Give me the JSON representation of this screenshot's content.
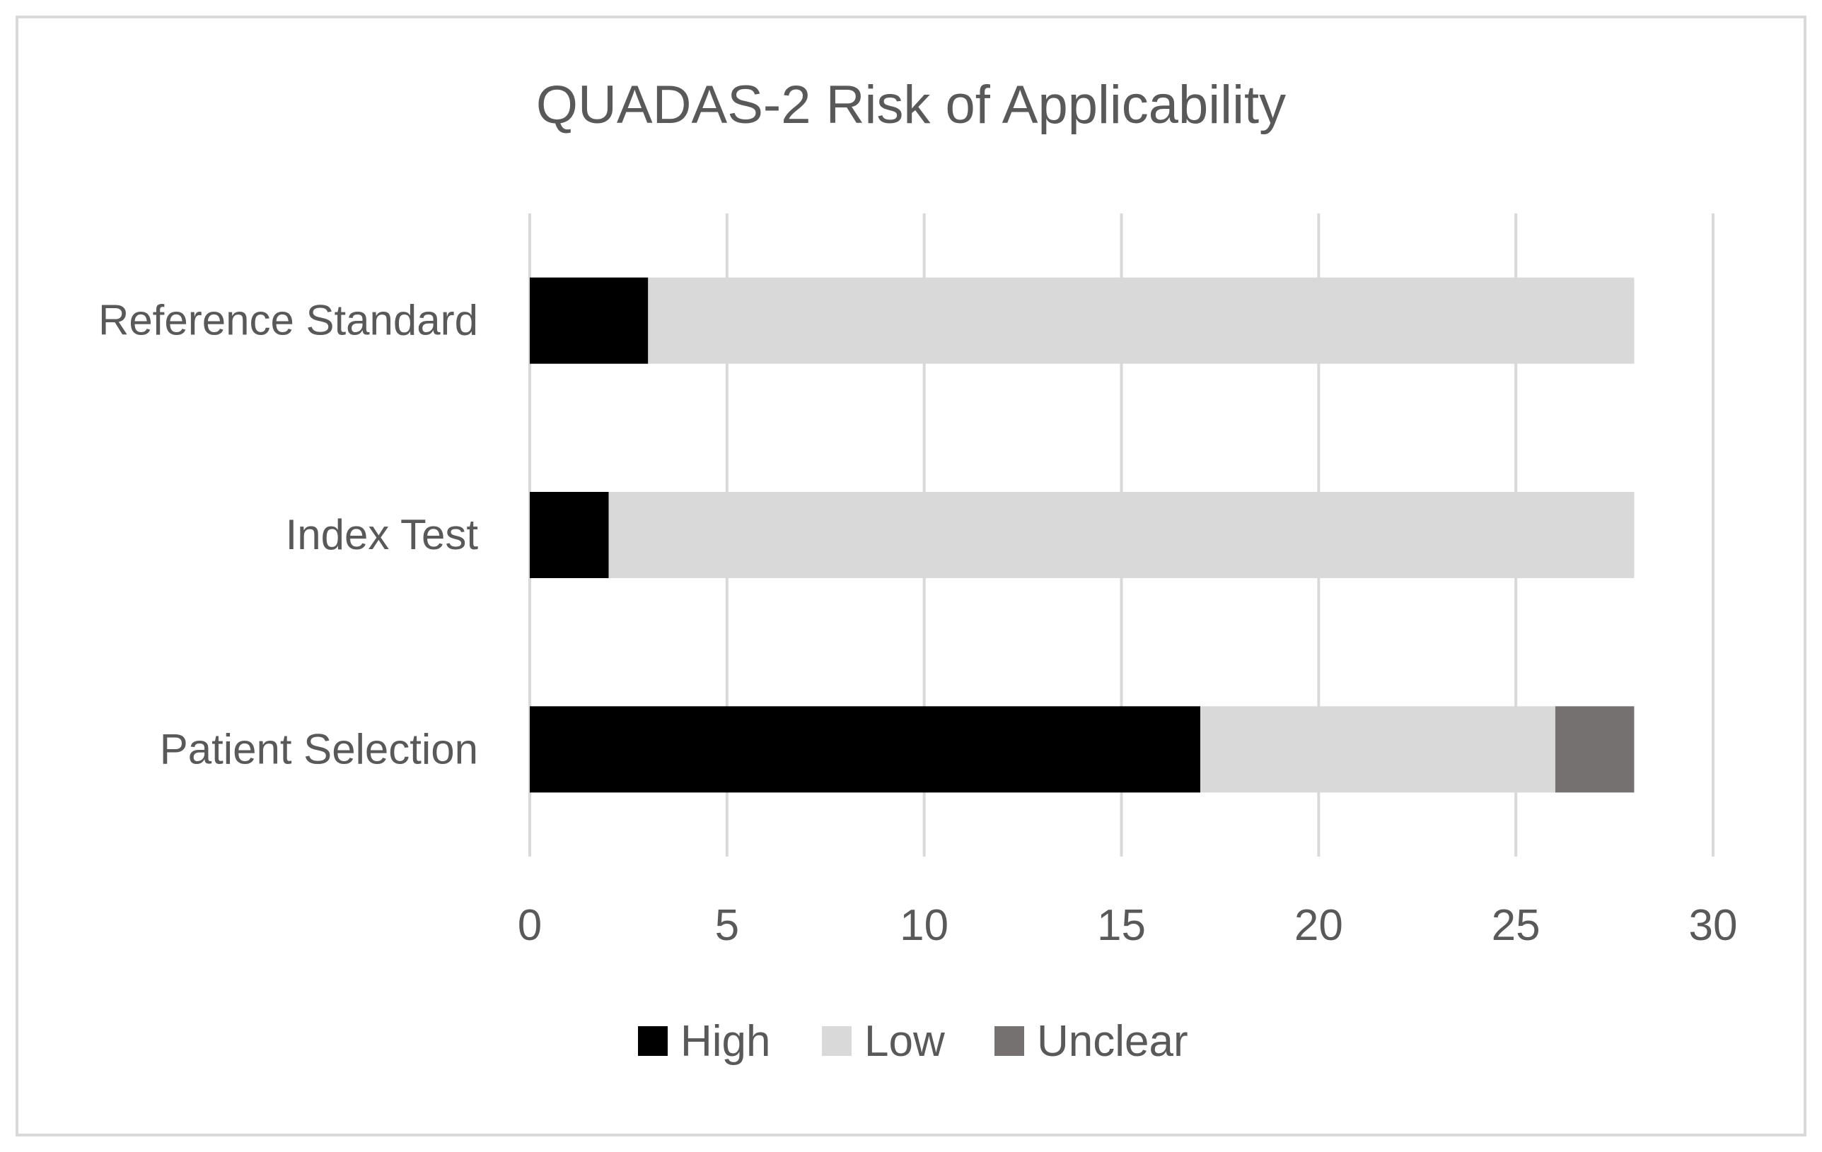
{
  "chart_data": {
    "type": "bar",
    "orientation": "horizontal",
    "stacked": true,
    "title": "QUADAS-2 Risk of Applicability",
    "categories": [
      "Patient Selection",
      "Index Test",
      "Reference Standard"
    ],
    "series": [
      {
        "name": "High",
        "values": [
          17,
          2,
          3
        ],
        "color": "#000000"
      },
      {
        "name": "Low",
        "values": [
          9,
          26,
          25
        ],
        "color": "#d9d9d9"
      },
      {
        "name": "Unclear",
        "values": [
          2,
          0,
          0
        ],
        "color": "#767171"
      }
    ],
    "xlim": [
      0,
      30
    ],
    "xticks": [
      0,
      5,
      10,
      15,
      20,
      25,
      30
    ],
    "xtick_labels": [
      "0",
      "5",
      "10",
      "15",
      "20",
      "25",
      "30"
    ],
    "grid": "vertical",
    "gridline_color": "#d9d9d9",
    "text_color": "#595959",
    "legend_position": "bottom"
  }
}
